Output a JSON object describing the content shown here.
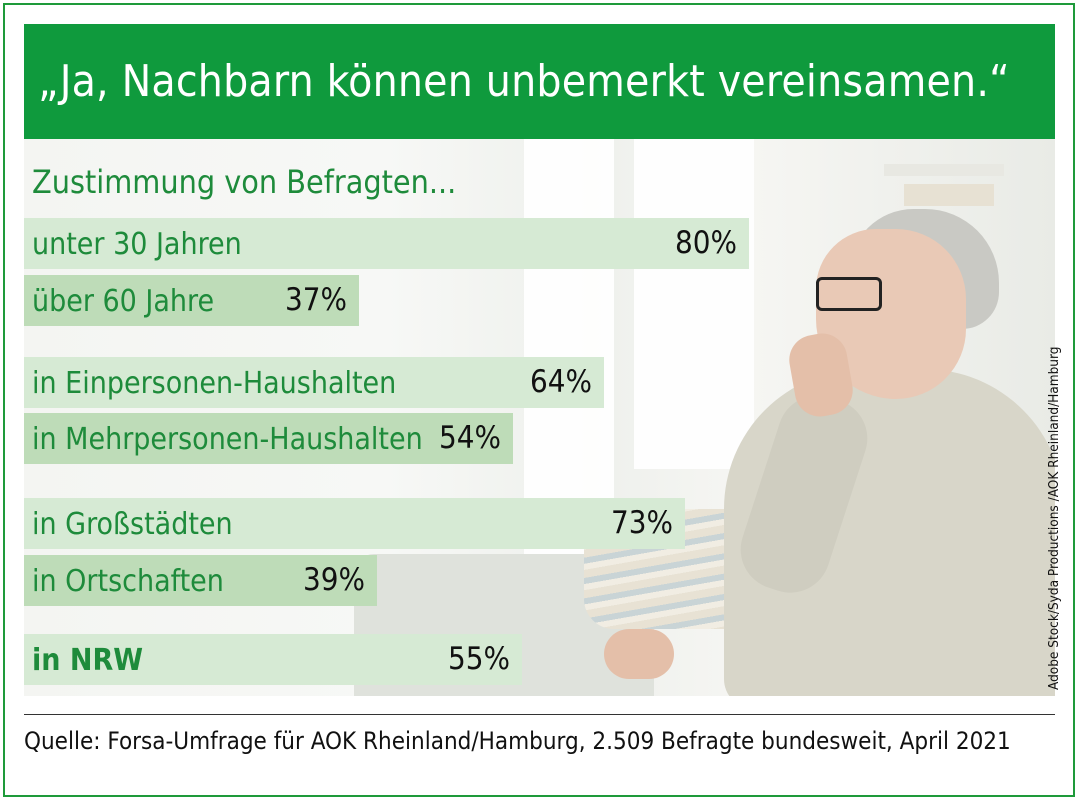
{
  "title": "„Ja, Nachbarn können unbemerkt vereinsamen.“",
  "subtitle": "Zustimmung von Befragten...",
  "chart_data": {
    "type": "bar",
    "orientation": "horizontal",
    "categories": [
      "unter 30 Jahren",
      "über 60 Jahre",
      "in Einpersonen-Haushalten",
      "in Mehrpersonen-Haushalten",
      "in Großstädten",
      "in Ortschaften",
      "in NRW"
    ],
    "values": [
      80,
      37,
      64,
      54,
      73,
      39,
      55
    ],
    "value_labels": [
      "80%",
      "37%",
      "64%",
      "54%",
      "73%",
      "39%",
      "55%"
    ],
    "unit": "%",
    "xlim": [
      0,
      100
    ],
    "bar_colors": [
      "#d6ead4",
      "#bedcb8",
      "#d6ead4",
      "#bedcb8",
      "#d6ead4",
      "#bedcb8",
      "#d6ead4"
    ]
  },
  "photo_credit": "Adobe Stock/Syda Productions /AOK Rheinland/Hamburg",
  "source": "Quelle: Forsa-Umfrage für AOK Rheinland/Hamburg, 2.509 Befragte bundesweit, April 2021",
  "colors": {
    "banner": "#0f9a3d",
    "accent_text": "#1e8b3b",
    "frame": "#1e9a3a"
  }
}
